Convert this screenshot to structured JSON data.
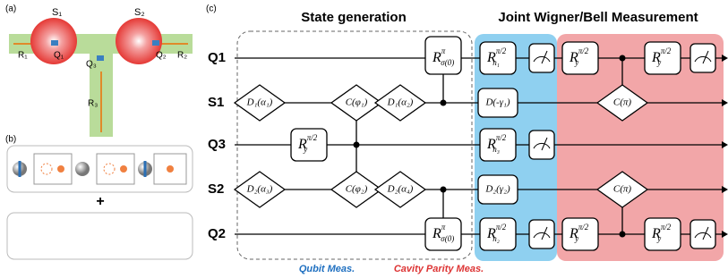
{
  "panel_a": {
    "label": "(a)",
    "cavities": [
      "S₁",
      "S₂"
    ],
    "readouts": [
      "R₁",
      "R₂",
      "R₃"
    ],
    "qubits": [
      "Q₁",
      "Q₃",
      "Q₂"
    ]
  },
  "panel_b": {
    "label": "(b)",
    "plus": "+"
  },
  "panel_c": {
    "label": "(c)",
    "sections": [
      "State generation",
      "Joint Wigner/Bell Measurement"
    ],
    "rows": [
      {
        "label": "Q1",
        "gates": [
          {
            "base": "R",
            "sup": "π",
            "sub": "σ(0)"
          },
          {
            "base": "R",
            "sup": "π/2",
            "sub": "n₁"
          },
          {
            "base": "R",
            "sup": "π/2",
            "sub": "y"
          },
          {
            "base": "R",
            "sup": "π/2",
            "sub": "y"
          }
        ]
      },
      {
        "label": "S1",
        "gates": [
          {
            "text": "D₁(α₁)"
          },
          {
            "text": "C(φ₁)"
          },
          {
            "text": "D₁(α₂)"
          },
          {
            "text": "D(-γ₁)"
          },
          {
            "text": "C(π)"
          }
        ]
      },
      {
        "label": "Q3",
        "gates": [
          {
            "base": "R",
            "sup": "π/2",
            "sub": "y"
          },
          {
            "base": "R",
            "sup": "π/2",
            "sub": "n₃"
          }
        ]
      },
      {
        "label": "S2",
        "gates": [
          {
            "text": "D₂(α₃)"
          },
          {
            "text": "C(φ₂)"
          },
          {
            "text": "D₂(α₄)"
          },
          {
            "text": "D₂(γ₂)"
          },
          {
            "text": "C(π)"
          }
        ]
      },
      {
        "label": "Q2",
        "gates": [
          {
            "base": "R",
            "sup": "π",
            "sub": "σ(0)"
          },
          {
            "base": "R",
            "sup": "π/2",
            "sub": "n₂"
          },
          {
            "base": "R",
            "sup": "π/2",
            "sub": "y"
          },
          {
            "base": "R",
            "sup": "π/2",
            "sub": "y"
          }
        ]
      }
    ],
    "footer": [
      "Qubit Meas.",
      "Cavity Parity Meas."
    ]
  }
}
